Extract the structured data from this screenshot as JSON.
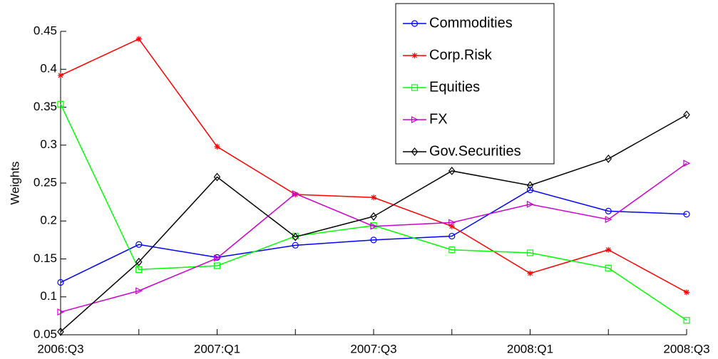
{
  "chart_data": {
    "type": "line",
    "y_label": "Weights",
    "categories": [
      "2006:Q3",
      null,
      "2007:Q1",
      null,
      "2007:Q3",
      null,
      "2008:Q1",
      null,
      "2008:Q3"
    ],
    "ylim": [
      0.05,
      0.45
    ],
    "yticks": [
      0.05,
      0.1,
      0.15,
      0.2,
      0.25,
      0.3,
      0.35,
      0.4,
      0.45
    ],
    "series": [
      {
        "name": "Commodities",
        "color": "#0000ff",
        "marker": "circle",
        "values": [
          0.119,
          0.169,
          0.152,
          0.168,
          0.175,
          0.18,
          0.241,
          0.213,
          0.209
        ]
      },
      {
        "name": "Corp.Risk",
        "color": "#ff0000",
        "marker": "star",
        "values": [
          0.392,
          0.44,
          0.298,
          0.235,
          0.231,
          0.193,
          0.131,
          0.162,
          0.106
        ]
      },
      {
        "name": "Equities",
        "color": "#00ff00",
        "marker": "square",
        "values": [
          0.354,
          0.136,
          0.141,
          0.18,
          0.194,
          0.162,
          0.158,
          0.138,
          0.069
        ]
      },
      {
        "name": "FX",
        "color": "#cc00cc",
        "marker": "triangle-right",
        "values": [
          0.08,
          0.108,
          0.151,
          0.236,
          0.193,
          0.198,
          0.222,
          0.202,
          0.276
        ]
      },
      {
        "name": "Gov.Securities",
        "color": "#000000",
        "marker": "diamond",
        "values": [
          0.054,
          0.146,
          0.258,
          0.179,
          0.206,
          0.266,
          0.247,
          0.282,
          0.34
        ]
      }
    ]
  }
}
